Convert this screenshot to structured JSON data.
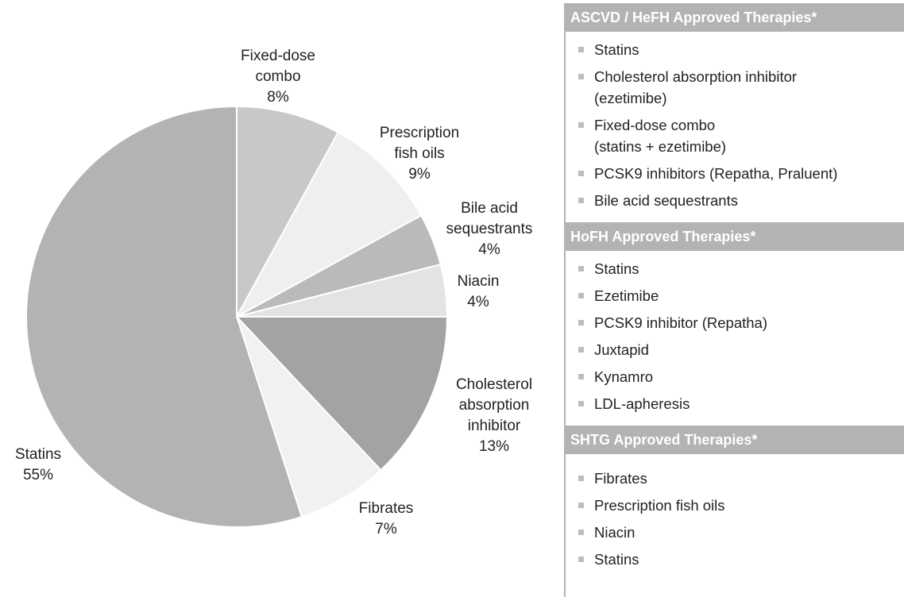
{
  "chart_data": {
    "type": "pie",
    "categories": [
      "Fixed-dose combo",
      "Prescription fish oils",
      "Bile acid sequestrants",
      "Niacin",
      "Cholesterol absorption inhibitor",
      "Fibrates",
      "Statins"
    ],
    "values": [
      8,
      9,
      4,
      4,
      13,
      7,
      55
    ],
    "value_labels": [
      "8%",
      "9%",
      "4%",
      "4%",
      "13%",
      "7%",
      "55%"
    ],
    "colors": [
      "#c8c8c8",
      "#efefef",
      "#bababa",
      "#e3e3e3",
      "#a3a3a3",
      "#f1f1f1",
      "#b3b3b3"
    ]
  },
  "panel": {
    "sections": [
      {
        "title": "ASCVD / HeFH Approved Therapies*",
        "items": [
          "Statins",
          "Cholesterol absorption inhibitor\n(ezetimibe)",
          "Fixed-dose combo\n(statins + ezetimibe)",
          "PCSK9 inhibitors (Repatha, Praluent)",
          "Bile acid sequestrants"
        ]
      },
      {
        "title": "HoFH Approved Therapies*",
        "items": [
          "Statins",
          "Ezetimibe",
          "PCSK9 inhibitor (Repatha)",
          "Juxtapid",
          "Kynamro",
          "LDL-apheresis"
        ]
      },
      {
        "title": "SHTG Approved Therapies*",
        "items": [
          "Fibrates",
          "Prescription fish oils",
          "Niacin",
          "Statins"
        ]
      }
    ]
  }
}
